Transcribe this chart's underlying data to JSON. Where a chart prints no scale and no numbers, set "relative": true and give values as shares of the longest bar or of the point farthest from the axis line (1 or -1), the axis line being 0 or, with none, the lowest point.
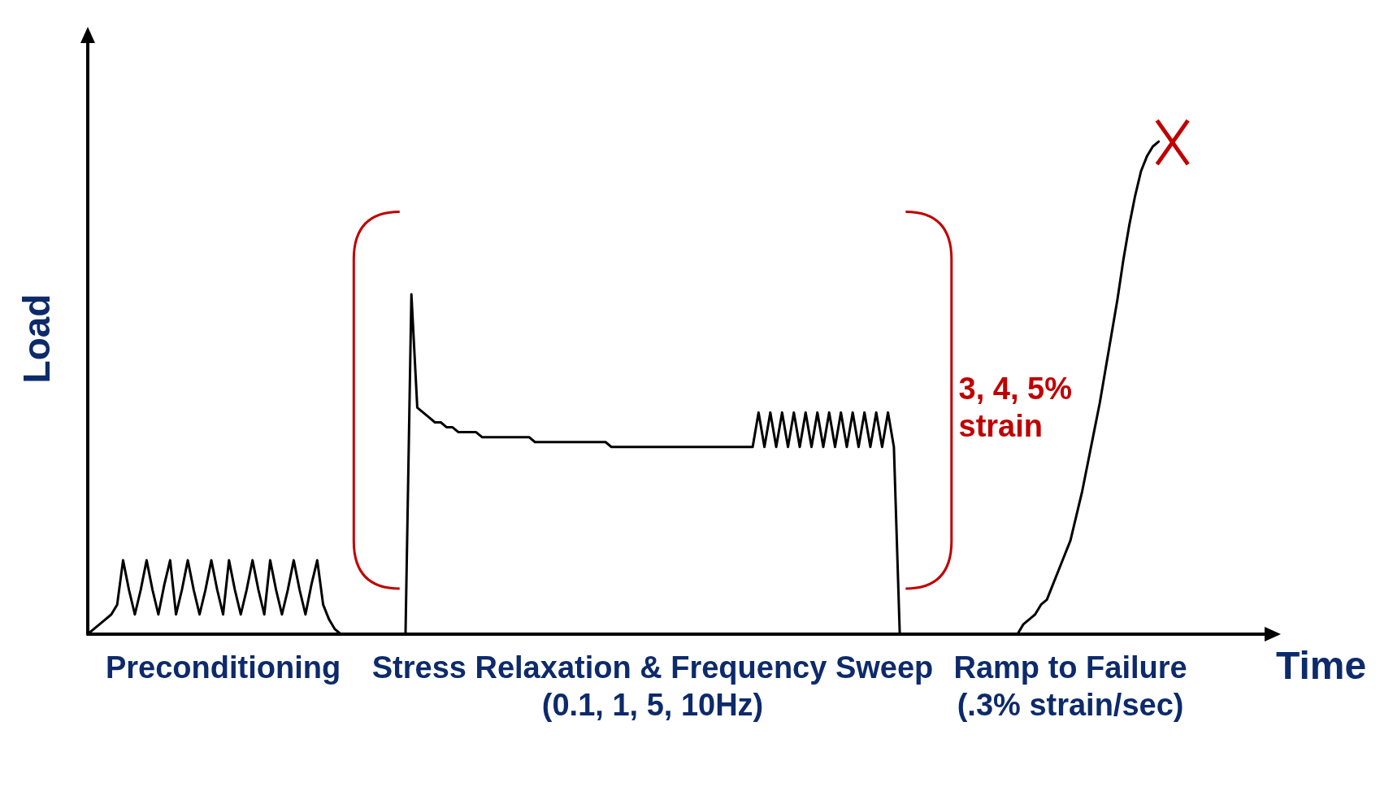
{
  "chart_data": {
    "type": "line",
    "relative": true,
    "xlabel": "Time",
    "ylabel": "Load",
    "grid": false,
    "marker": "none",
    "line_style": "solid",
    "categories": [
      null,
      null,
      null,
      null,
      null,
      null,
      null,
      null,
      null,
      null,
      null,
      null,
      null,
      null,
      null,
      null,
      null,
      null,
      null,
      null,
      null,
      null,
      null,
      null,
      null,
      null,
      null,
      null,
      null,
      null,
      null,
      null,
      null,
      null,
      null,
      null,
      null,
      null,
      null,
      null,
      null,
      null,
      null,
      null,
      null,
      null,
      null,
      null,
      null,
      null,
      null,
      null,
      null,
      null,
      null,
      null,
      null,
      null,
      null,
      null,
      null,
      null,
      null,
      null,
      null,
      null,
      null,
      null,
      null,
      null,
      null,
      null,
      null,
      null,
      null,
      null,
      null,
      null,
      null,
      null,
      null,
      null,
      null,
      null,
      null,
      null,
      null,
      null,
      null,
      null,
      null,
      null,
      null,
      null,
      null,
      null,
      null,
      null,
      null,
      null,
      null,
      null,
      null,
      null,
      null,
      null,
      null,
      null,
      null,
      null,
      null,
      null,
      null,
      null,
      null,
      null,
      null,
      null,
      null,
      null,
      null,
      null,
      null,
      null,
      null,
      null,
      null,
      null,
      null,
      null,
      null,
      null,
      null,
      null,
      null,
      null,
      null,
      null,
      null,
      null,
      null,
      null,
      null,
      null,
      null,
      null,
      null,
      null,
      null,
      null,
      null,
      null,
      null,
      null,
      null,
      null,
      null,
      null,
      null,
      null,
      null,
      null,
      null,
      null,
      null,
      null,
      null,
      null,
      null,
      null,
      null,
      null,
      null,
      null,
      null,
      null,
      null,
      null,
      null,
      null,
      null,
      null,
      null,
      null,
      null,
      null,
      null,
      null,
      null,
      null,
      null,
      null,
      null,
      null,
      null,
      null,
      null,
      null,
      null,
      null,
      null
    ],
    "series": [
      {
        "color": "#000000",
        "values": [
          0,
          0.01,
          0.02,
          0.03,
          0.04,
          0.06,
          0.15,
          0.09,
          0.04,
          0.09,
          0.15,
          0.09,
          0.04,
          0.1,
          0.15,
          0.04,
          0.09,
          0.15,
          0.09,
          0.04,
          0.09,
          0.15,
          0.09,
          0.04,
          0.15,
          0.09,
          0.04,
          0.09,
          0.15,
          0.09,
          0.04,
          0.15,
          0.09,
          0.04,
          0.09,
          0.15,
          0.09,
          0.04,
          0.1,
          0.15,
          0.06,
          0.03,
          0.01,
          0,
          0,
          0,
          0,
          0,
          0,
          0,
          0,
          0,
          0,
          0,
          0,
          0.69,
          0.46,
          0.45,
          0.44,
          0.43,
          0.43,
          0.42,
          0.42,
          0.41,
          0.41,
          0.41,
          0.41,
          0.4,
          0.4,
          0.4,
          0.4,
          0.4,
          0.4,
          0.4,
          0.4,
          0.4,
          0.39,
          0.39,
          0.39,
          0.39,
          0.39,
          0.39,
          0.39,
          0.39,
          0.39,
          0.39,
          0.39,
          0.39,
          0.39,
          0.38,
          0.38,
          0.38,
          0.38,
          0.38,
          0.38,
          0.38,
          0.38,
          0.38,
          0.38,
          0.38,
          0.38,
          0.38,
          0.38,
          0.38,
          0.38,
          0.38,
          0.38,
          0.38,
          0.38,
          0.38,
          0.38,
          0.38,
          0.38,
          0.38,
          0.45,
          0.38,
          0.45,
          0.38,
          0.45,
          0.38,
          0.45,
          0.38,
          0.45,
          0.38,
          0.45,
          0.38,
          0.45,
          0.38,
          0.45,
          0.38,
          0.45,
          0.38,
          0.45,
          0.38,
          0.45,
          0.38,
          0.45,
          0.38,
          0,
          0,
          0,
          0,
          0,
          0,
          0,
          0,
          0,
          0,
          0,
          0,
          0,
          0,
          0,
          0,
          0,
          0,
          0,
          0,
          0,
          0.02,
          0.03,
          0.04,
          0.06,
          0.07,
          0.1,
          0.13,
          0.16,
          0.19,
          0.24,
          0.29,
          0.35,
          0.41,
          0.47,
          0.54,
          0.61,
          0.68,
          0.76,
          0.83,
          0.89,
          0.94,
          0.97,
          0.99,
          1,
          null,
          null,
          null,
          null,
          null,
          null,
          null,
          null,
          null,
          null,
          null,
          null,
          null,
          null,
          null,
          null,
          null,
          null
        ]
      }
    ],
    "annotations": [
      "Preconditioning",
      "Stress Relaxation & Frequency Sweep\n(0.1, 1, 5, 10Hz)",
      "Ramp to Failure\n(.3% strain/sec)",
      "3, 4, 5%\nstrain"
    ]
  }
}
